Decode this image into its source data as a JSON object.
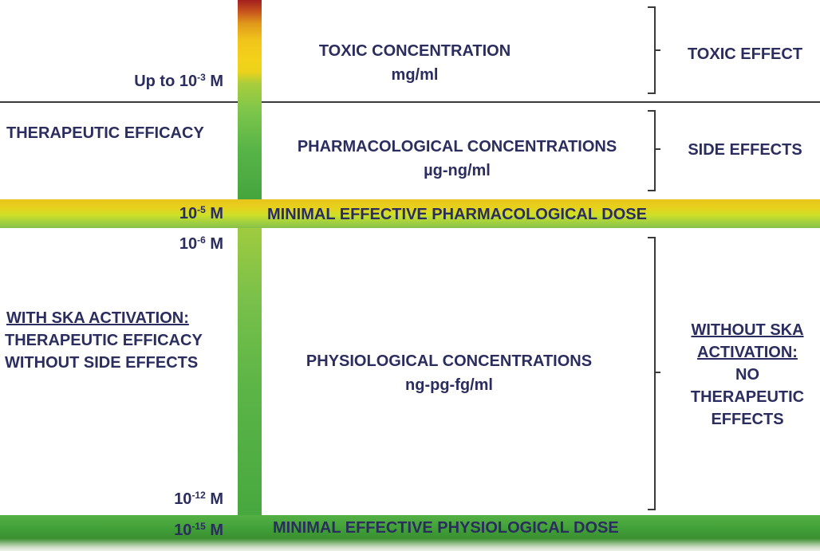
{
  "left_labels": {
    "up_to": "Up to 10",
    "up_to_exp": "-3",
    "up_to_unit": " M",
    "therapeutic_efficacy": "THERAPEUTIC EFFICACY",
    "m5": "10",
    "m5_exp": "-5",
    "m5_unit": " M",
    "m6": "10",
    "m6_exp": "-6",
    "m6_unit": " M",
    "ska_heading": "WITH SKA ACTIVATION:",
    "ska_line2": "THERAPEUTIC EFFICACY",
    "ska_line3": "WITHOUT SIDE EFFECTS",
    "m12": "10",
    "m12_exp": "-12",
    "m12_unit": " M",
    "m15": "10",
    "m15_exp": "-15",
    "m15_unit": " M"
  },
  "middle": {
    "toxic_title": "TOXIC CONCENTRATION",
    "toxic_unit": "mg/ml",
    "pharm_title": "PHARMACOLOGICAL CONCENTRATIONS",
    "pharm_unit": "µg-ng/ml",
    "min_pharm_dose": "MINIMAL EFFECTIVE PHARMACOLOGICAL DOSE",
    "phys_title": "PHYSIOLOGICAL CONCENTRATIONS",
    "phys_unit": "ng-pg-fg/ml",
    "min_phys_dose": "MINIMAL EFFECTIVE PHYSIOLOGICAL DOSE"
  },
  "right": {
    "toxic_effect": "TOXIC EFFECT",
    "side_effects": "SIDE EFFECTS",
    "without_ska_1": "WITHOUT SKA",
    "without_ska_2": "ACTIVATION:",
    "no": "NO",
    "therapeutic": "THERAPEUTIC",
    "effects": "EFFECTS"
  },
  "colors": {
    "text": "#2b2d5e",
    "toxic_red": "#a31e1f",
    "yellow": "#f0c41a",
    "green": "#45a53e"
  }
}
